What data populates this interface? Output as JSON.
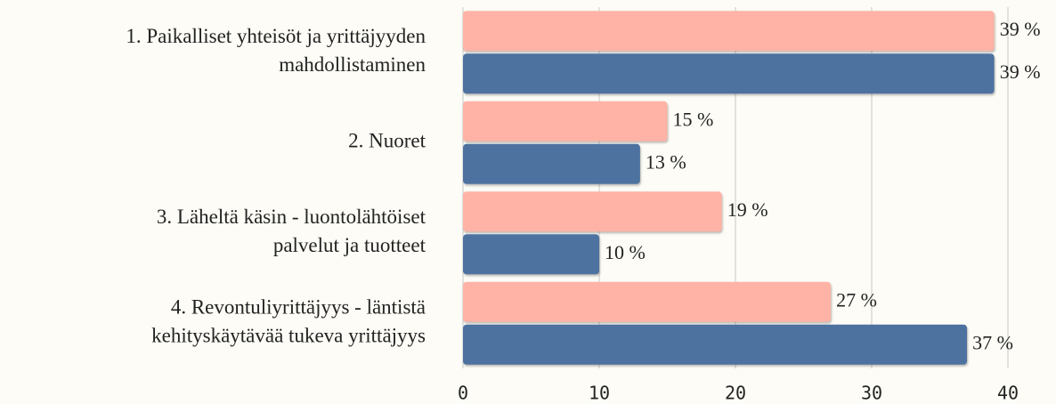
{
  "chart_data": {
    "type": "bar",
    "orientation": "horizontal",
    "categories": [
      "1.    Paikalliset yhteisöt ja yrittäjyyden\nmahdollistaminen",
      "2. Nuoret",
      "3. Läheltä käsin - luontolähtöiset\npalvelut ja tuotteet",
      "4. Revontuliyrittäjyys - läntistä\nkehityskäytävää tukeva yrittäjyys"
    ],
    "series": [
      {
        "color": "#ffb3a7",
        "values": [
          39,
          15,
          19,
          27
        ],
        "value_labels": [
          "39 %",
          "15 %",
          "19 %",
          "27 %"
        ]
      },
      {
        "color": "#4e72a0",
        "values": [
          39,
          13,
          10,
          37
        ],
        "value_labels": [
          "39 %",
          "13 %",
          "10 %",
          "37 %"
        ]
      }
    ],
    "xlim": [
      0,
      40
    ],
    "xticks": [
      0,
      10,
      20,
      30,
      40
    ],
    "grid": true
  }
}
